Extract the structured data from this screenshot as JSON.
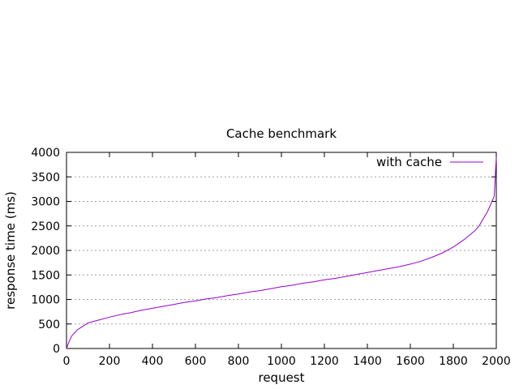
{
  "chart_data": {
    "type": "line",
    "title": "Cache benchmark",
    "xlabel": "request",
    "ylabel": "response time (ms)",
    "xlim": [
      0,
      2000
    ],
    "ylim": [
      0,
      4000
    ],
    "x_ticks": [
      0,
      200,
      400,
      600,
      800,
      1000,
      1200,
      1400,
      1600,
      1800,
      2000
    ],
    "y_ticks": [
      0,
      500,
      1000,
      1500,
      2000,
      2500,
      3000,
      3500,
      4000
    ],
    "grid": "horizontal dotted",
    "legend_position": "top-right",
    "series": [
      {
        "name": "with cache",
        "color": "#9400d3",
        "x": [
          0,
          10,
          25,
          50,
          75,
          100,
          150,
          200,
          250,
          300,
          350,
          400,
          450,
          500,
          550,
          600,
          650,
          700,
          750,
          800,
          850,
          900,
          950,
          1000,
          1050,
          1100,
          1150,
          1200,
          1250,
          1300,
          1350,
          1400,
          1450,
          1500,
          1550,
          1600,
          1650,
          1700,
          1750,
          1800,
          1850,
          1900,
          1920,
          1940,
          1960,
          1980,
          1990,
          1995,
          2000
        ],
        "values": [
          0,
          120,
          260,
          380,
          450,
          520,
          580,
          640,
          690,
          730,
          780,
          820,
          860,
          900,
          940,
          970,
          1010,
          1040,
          1080,
          1110,
          1150,
          1180,
          1220,
          1260,
          1290,
          1330,
          1360,
          1400,
          1430,
          1470,
          1510,
          1550,
          1590,
          1630,
          1670,
          1720,
          1780,
          1860,
          1950,
          2070,
          2220,
          2400,
          2500,
          2650,
          2800,
          3000,
          3100,
          3500,
          3900
        ]
      }
    ]
  }
}
